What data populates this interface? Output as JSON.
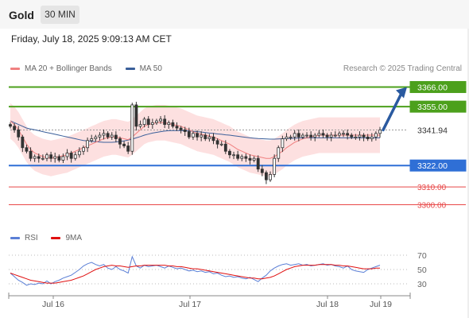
{
  "header": {
    "title": "Gold",
    "timeframe": "30 MIN"
  },
  "timestamp": "Friday, July 18, 2025 9:09:13 AM CET",
  "legend_top": [
    {
      "label": "MA 20 + Bollinger Bands",
      "color": "#f08080"
    },
    {
      "label": "MA 50",
      "color": "#3a5f9a"
    }
  ],
  "credit": "Research © 2025 Trading Central",
  "legend_bottom": [
    {
      "label": "RSI",
      "color": "#5b7fd6"
    },
    {
      "label": "9MA",
      "color": "#e01010"
    }
  ],
  "colors": {
    "resistance": "#4ca01c",
    "support": "#2f6fd6",
    "extra": "#e84848",
    "price": "#333333",
    "bb_fill": "#fde0e0",
    "arrow": "#2a5aa0"
  },
  "chart_data": {
    "type": "candlestick",
    "x_ticks": [
      "Jul 16",
      "Jul 17",
      "Jul 18",
      "Jul 19"
    ],
    "y_range": [
      3290,
      3372
    ],
    "levels": [
      {
        "value": 3366.0,
        "label": "3366.00",
        "kind": "resistance"
      },
      {
        "value": 3355.0,
        "label": "3355.00",
        "kind": "resistance"
      },
      {
        "value": 3341.94,
        "label": "3341.94",
        "kind": "price"
      },
      {
        "value": 3322.0,
        "label": "3322.00",
        "kind": "support"
      },
      {
        "value": 3310.0,
        "label": "3310.00",
        "kind": "extra"
      },
      {
        "value": 3300.0,
        "label": "3300.00",
        "kind": "extra"
      }
    ],
    "price_path": [
      3344,
      3342,
      3338,
      3332,
      3330,
      3326,
      3327,
      3326,
      3326,
      3328,
      3326,
      3327,
      3325,
      3327,
      3329,
      3326,
      3328,
      3330,
      3332,
      3336,
      3337,
      3338,
      3339,
      3340,
      3338,
      3339,
      3337,
      3334,
      3333,
      3330,
      3356,
      3344,
      3345,
      3348,
      3345,
      3346,
      3347,
      3348,
      3345,
      3346,
      3344,
      3343,
      3342,
      3341,
      3338,
      3340,
      3338,
      3339,
      3337,
      3338,
      3336,
      3334,
      3334,
      3330,
      3328,
      3328,
      3326,
      3327,
      3326,
      3325,
      3326,
      3320,
      3318,
      3314,
      3317,
      3326,
      3332,
      3337,
      3338,
      3338,
      3340,
      3338,
      3339,
      3339,
      3338,
      3339,
      3340,
      3339,
      3338,
      3339,
      3339,
      3340,
      3340,
      3339,
      3338,
      3338,
      3339,
      3338,
      3337,
      3338,
      3340,
      3341.94
    ],
    "ma20": [
      3347,
      3345,
      3342,
      3338,
      3334,
      3331,
      3329,
      3328,
      3327,
      3326.5,
      3326,
      3326.5,
      3327,
      3327.5,
      3328,
      3329,
      3330,
      3331,
      3332,
      3333,
      3334,
      3335,
      3336,
      3337,
      3337.5,
      3338,
      3338,
      3337.5,
      3337,
      3336.5,
      3338,
      3340,
      3342,
      3344,
      3345,
      3345.5,
      3346,
      3346,
      3346,
      3345.5,
      3345,
      3344.5,
      3344,
      3343,
      3342,
      3341,
      3340,
      3339.5,
      3339,
      3338.5,
      3338,
      3337,
      3336,
      3335,
      3334,
      3332.5,
      3331,
      3330,
      3329,
      3328,
      3327.5,
      3327,
      3326.5,
      3326,
      3326,
      3327,
      3328.5,
      3330,
      3332,
      3333.5,
      3335,
      3336,
      3337,
      3337.5,
      3338,
      3338.5,
      3339,
      3339,
      3339,
      3339,
      3339,
      3339,
      3339,
      3339,
      3339,
      3339,
      3339,
      3339,
      3339,
      3339,
      3339,
      3339
    ],
    "ma50": [
      3347,
      3346,
      3345,
      3344,
      3343,
      3342.5,
      3342,
      3341.5,
      3341,
      3340.5,
      3340,
      3339.5,
      3339,
      3338.5,
      3338,
      3337.5,
      3337,
      3336.5,
      3336,
      3335.8,
      3335.6,
      3335.4,
      3335.2,
      3335,
      3335,
      3335,
      3335.2,
      3335.5,
      3335.8,
      3336.2,
      3336.8,
      3337.5,
      3338.2,
      3339,
      3339.6,
      3340.2,
      3340.6,
      3341,
      3341.3,
      3341.5,
      3341.6,
      3341.6,
      3341.6,
      3341.5,
      3341.4,
      3341.2,
      3341,
      3340.8,
      3340.5,
      3340.2,
      3340,
      3339.7,
      3339.5,
      3339.2,
      3339,
      3338.7,
      3338.4,
      3338.1,
      3337.8,
      3337.5,
      3337.3,
      3337.1,
      3337,
      3336.9,
      3336.8,
      3336.8,
      3336.9,
      3337,
      3337.1,
      3337.2,
      3337.3,
      3337.4,
      3337.5,
      3337.5,
      3337.5,
      3337.5,
      3337.5,
      3337.5,
      3337.5,
      3337.5,
      3337.5,
      3337.5,
      3337.5,
      3337.5,
      3337.5,
      3337.5,
      3337.5,
      3337.5,
      3337.5,
      3337.5,
      3337.5,
      3337.5
    ],
    "bb_width": 10,
    "rsi": {
      "y_ticks": [
        70,
        50,
        30
      ],
      "y_range": [
        20,
        80
      ],
      "rsi": [
        45,
        40,
        35,
        32,
        28,
        30,
        29,
        31,
        30,
        34,
        30,
        33,
        35,
        38,
        40,
        42,
        46,
        50,
        55,
        58,
        60,
        57,
        55,
        57,
        52,
        50,
        54,
        50,
        48,
        45,
        68,
        55,
        52,
        56,
        54,
        55,
        56,
        54,
        52,
        55,
        53,
        51,
        52,
        50,
        48,
        49,
        47,
        48,
        46,
        47,
        44,
        45,
        42,
        40,
        41,
        39,
        40,
        38,
        37,
        39,
        36,
        33,
        38,
        42,
        48,
        52,
        55,
        57,
        58,
        56,
        57,
        58,
        56,
        57,
        55,
        56,
        57,
        58,
        56,
        57,
        55,
        54,
        52,
        55,
        50,
        48,
        47,
        46,
        50,
        52,
        54,
        56
      ],
      "ma9": [
        45,
        43,
        41,
        39,
        37,
        35,
        34,
        33,
        32,
        31,
        31,
        31,
        32,
        33,
        34,
        35,
        37,
        39,
        41,
        44,
        47,
        50,
        52,
        54,
        55,
        56,
        55,
        55,
        54,
        53,
        54,
        55,
        55,
        56,
        56,
        56,
        56,
        56,
        56,
        55,
        55,
        54,
        54,
        53,
        52,
        51,
        51,
        50,
        49,
        48,
        47,
        46,
        45,
        44,
        43,
        42,
        41,
        40,
        39,
        38,
        38,
        37,
        37,
        38,
        39,
        41,
        44,
        47,
        50,
        52,
        54,
        55,
        56,
        56,
        56,
        56,
        57,
        57,
        57,
        57,
        56,
        56,
        55,
        55,
        54,
        53,
        52,
        51,
        51,
        51,
        52,
        52
      ]
    }
  }
}
